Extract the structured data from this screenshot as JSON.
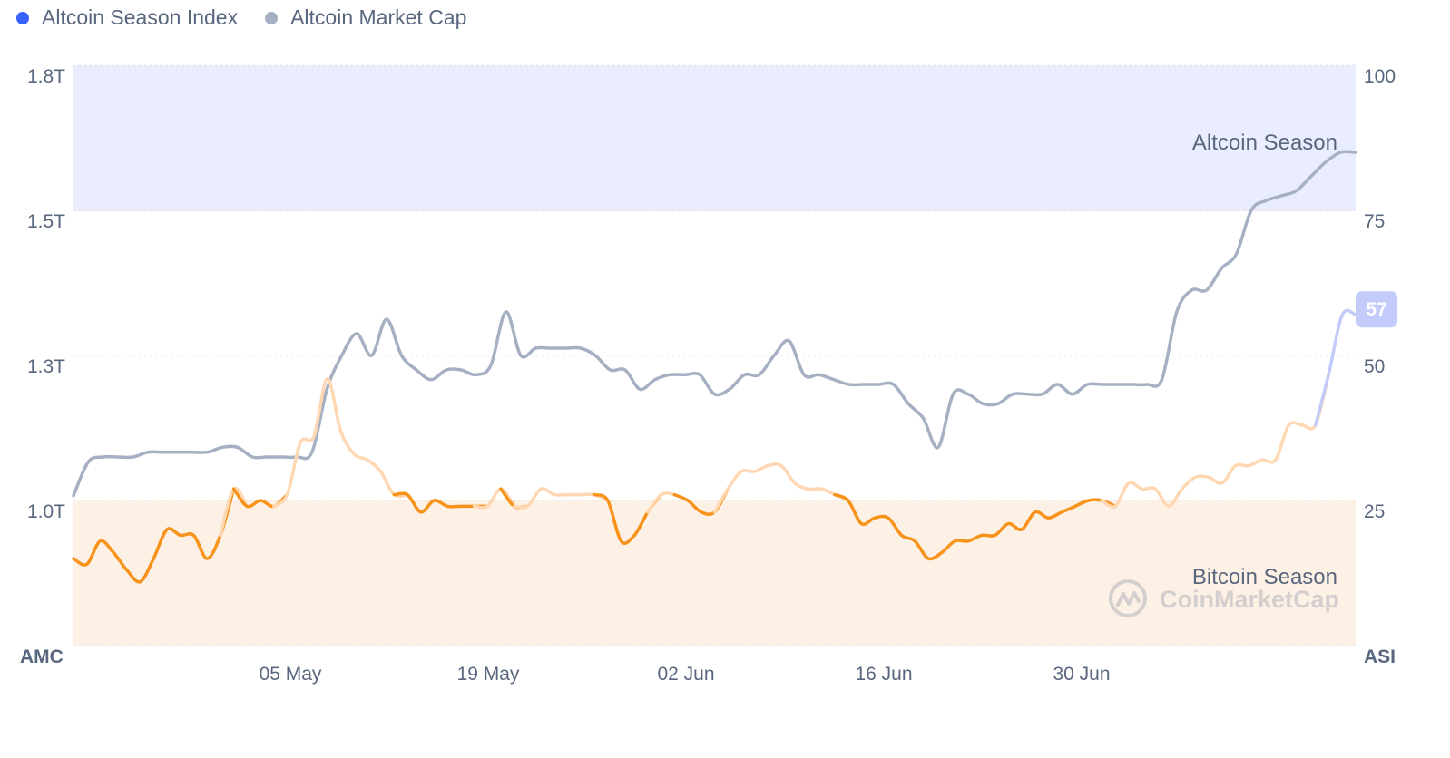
{
  "legend": [
    {
      "label": "Altcoin Season Index",
      "color": "#3861fb"
    },
    {
      "label": "Altcoin Market Cap",
      "color": "#a6b0c3"
    }
  ],
  "zones": {
    "altcoin_label": "Altcoin Season",
    "bitcoin_label": "Bitcoin Season",
    "altcoin_fill": "#eaedfe",
    "bitcoin_fill": "#fdf1e6"
  },
  "watermark": "CoinMarketCap",
  "axis_labels": {
    "left_title": "AMC",
    "right_title": "ASI"
  },
  "latest_badge": {
    "value": "57"
  },
  "chart_data": {
    "type": "line",
    "x_ticks": [
      "05 May",
      "19 May",
      "02 Jun",
      "16 Jun",
      "30 Jun"
    ],
    "left_axis": {
      "ticks": [
        "1.8T",
        "1.5T",
        "1.3T",
        "1.0T"
      ]
    },
    "right_axis": {
      "ticks": [
        "100",
        "75",
        "50",
        "25"
      ],
      "range": [
        0,
        100
      ]
    },
    "grid": true,
    "legend_position": "top-left",
    "series": [
      {
        "name": "Altcoin Season Index",
        "axis": "right",
        "color_above_25": "#ffd8b3",
        "color_below_25": "#f7931a",
        "color_latest": "#c3cbfa",
        "values": [
          15,
          14,
          18,
          16,
          13,
          11,
          15,
          20,
          19,
          19,
          15,
          19,
          27,
          24,
          25,
          24,
          26,
          35,
          36,
          46,
          37,
          33,
          32,
          30,
          26,
          26,
          23,
          25,
          24,
          24,
          24,
          24,
          27,
          24,
          24,
          27,
          26,
          26,
          26,
          26,
          25,
          18,
          19,
          23,
          26,
          26,
          25,
          23,
          23,
          27,
          30,
          30,
          31,
          31,
          28,
          27,
          27,
          26,
          25,
          21,
          22,
          22,
          19,
          18,
          15,
          16,
          18,
          18,
          19,
          19,
          21,
          20,
          23,
          22,
          23,
          24,
          25,
          25,
          24,
          28,
          27,
          27,
          24,
          27,
          29,
          29,
          28,
          31,
          31,
          32,
          32,
          38,
          38,
          38,
          47,
          57,
          57
        ]
      },
      {
        "name": "Altcoin Market Cap",
        "axis": "left",
        "color": "#a6b0c3",
        "values": [
          1.01,
          1.08,
          1.09,
          1.09,
          1.09,
          1.1,
          1.1,
          1.1,
          1.1,
          1.1,
          1.11,
          1.11,
          1.09,
          1.09,
          1.09,
          1.09,
          1.1,
          1.23,
          1.3,
          1.33,
          1.3,
          1.35,
          1.3,
          1.27,
          1.25,
          1.27,
          1.27,
          1.26,
          1.28,
          1.36,
          1.3,
          1.31,
          1.31,
          1.31,
          1.31,
          1.3,
          1.27,
          1.27,
          1.23,
          1.25,
          1.26,
          1.26,
          1.26,
          1.22,
          1.23,
          1.26,
          1.26,
          1.3,
          1.32,
          1.26,
          1.26,
          1.25,
          1.24,
          1.24,
          1.24,
          1.24,
          1.2,
          1.17,
          1.11,
          1.22,
          1.22,
          1.2,
          1.2,
          1.22,
          1.22,
          1.22,
          1.24,
          1.22,
          1.24,
          1.24,
          1.24,
          1.24,
          1.24,
          1.25,
          1.36,
          1.39,
          1.39,
          1.42,
          1.44,
          1.5,
          1.52,
          1.53,
          1.54,
          1.57,
          1.6,
          1.62,
          1.62
        ]
      }
    ]
  }
}
